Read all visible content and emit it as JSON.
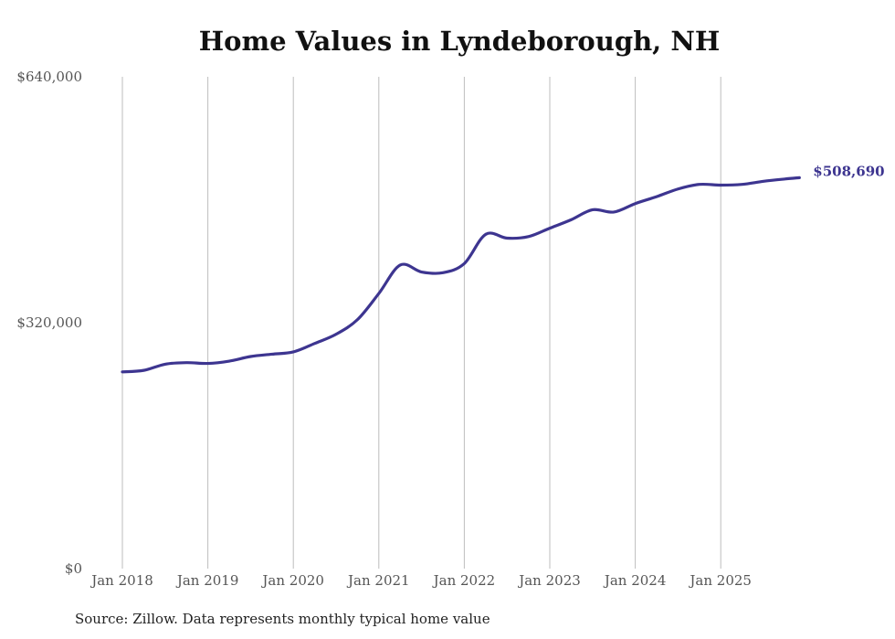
{
  "chart_data": {
    "type": "line",
    "title": "Home Values in Lyndeborough, NH",
    "xlabel": "",
    "ylabel": "",
    "ylim": [
      0,
      640000
    ],
    "y_ticks": [
      {
        "value": 0,
        "label": "$0"
      },
      {
        "value": 320000,
        "label": "$320,000"
      },
      {
        "value": 640000,
        "label": "$640,000"
      }
    ],
    "x_ticks": [
      {
        "value": 2018,
        "label": "Jan 2018"
      },
      {
        "value": 2019,
        "label": "Jan 2019"
      },
      {
        "value": 2020,
        "label": "Jan 2020"
      },
      {
        "value": 2021,
        "label": "Jan 2021"
      },
      {
        "value": 2022,
        "label": "Jan 2022"
      },
      {
        "value": 2023,
        "label": "Jan 2023"
      },
      {
        "value": 2024,
        "label": "Jan 2024"
      },
      {
        "value": 2025,
        "label": "Jan 2025"
      }
    ],
    "xlim": [
      2018,
      2025.92
    ],
    "grid": "vertical",
    "series": [
      {
        "name": "Typical home value",
        "color": "#3d3590",
        "x": [
          2018.0,
          2018.25,
          2018.5,
          2018.75,
          2019.0,
          2019.25,
          2019.5,
          2019.75,
          2020.0,
          2020.25,
          2020.5,
          2020.75,
          2021.0,
          2021.25,
          2021.5,
          2021.75,
          2022.0,
          2022.25,
          2022.5,
          2022.75,
          2023.0,
          2023.25,
          2023.5,
          2023.75,
          2024.0,
          2024.25,
          2024.5,
          2024.75,
          2025.0,
          2025.25,
          2025.5,
          2025.75,
          2025.92
        ],
        "values": [
          256000,
          258000,
          266000,
          268000,
          267000,
          270000,
          276000,
          279000,
          282000,
          293000,
          305000,
          324000,
          358000,
          395000,
          386000,
          385000,
          397000,
          435000,
          430000,
          432000,
          443000,
          454000,
          467000,
          464000,
          475000,
          484000,
          494000,
          500000,
          499000,
          500000,
          504000,
          507000,
          508690
        ]
      }
    ],
    "end_label": "$508,690",
    "source": "Source: Zillow. Data represents monthly typical home value"
  }
}
